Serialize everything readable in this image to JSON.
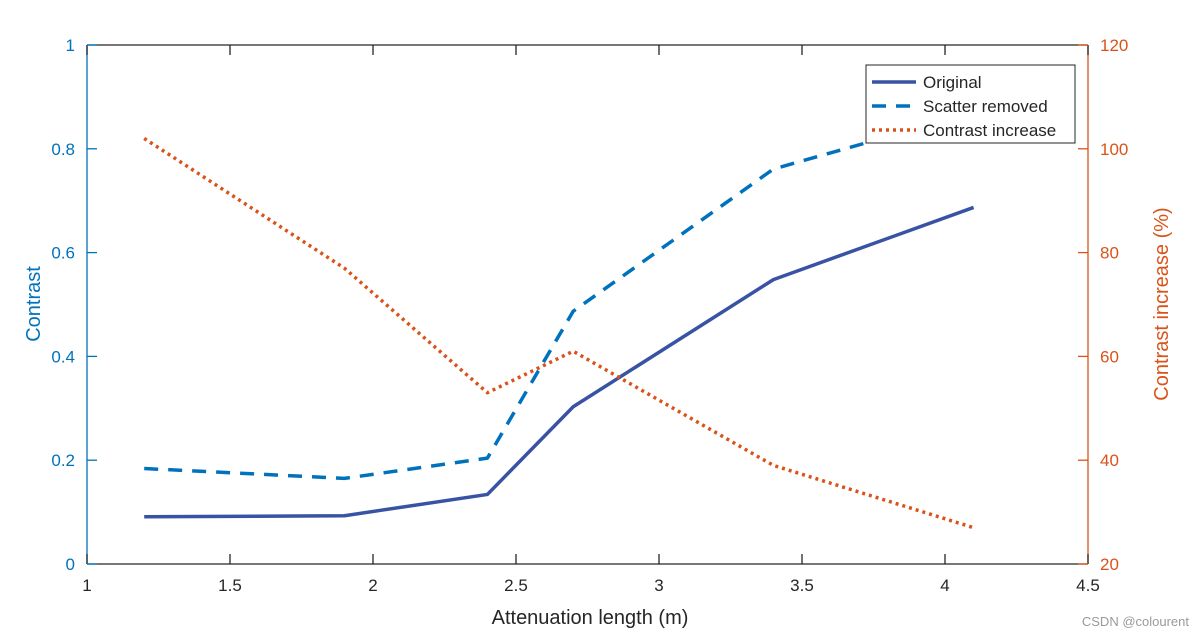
{
  "chart_data": {
    "type": "line",
    "xlabel": "Attenuation length (m)",
    "ylabel": "Contrast",
    "ylabel_right": "Contrast increase (%)",
    "xlim": [
      1,
      4.5
    ],
    "ylim": [
      0,
      1
    ],
    "ylim_right": [
      20,
      120
    ],
    "xticks": [
      "1",
      "1.5",
      "2",
      "2.5",
      "3",
      "3.5",
      "4",
      "4.5"
    ],
    "yticks": [
      "0",
      "0.2",
      "0.4",
      "0.6",
      "0.8",
      "1"
    ],
    "yticks_right": [
      "20",
      "40",
      "60",
      "80",
      "100",
      "120"
    ],
    "grid": false,
    "legend_position": "top-right",
    "x": [
      1.2,
      1.9,
      2.4,
      2.7,
      3.4,
      4.1
    ],
    "series": [
      {
        "name": "Original",
        "axis": "left",
        "style": "solid",
        "color": "#3953A4",
        "values": [
          0.091,
          0.093,
          0.134,
          0.303,
          0.548,
          0.687
        ]
      },
      {
        "name": "Scatter removed",
        "axis": "left",
        "style": "dashed",
        "color": "#0072BD",
        "values": [
          0.184,
          0.165,
          0.204,
          0.487,
          0.761,
          0.87
        ]
      },
      {
        "name": "Contrast increase",
        "axis": "right",
        "style": "dotted",
        "color": "#D95319",
        "values": [
          102,
          77,
          53,
          61,
          39,
          27
        ]
      }
    ],
    "colors": {
      "left_axis": "#0072BD",
      "right_axis": "#D95319",
      "x_axis": "#262626"
    }
  },
  "watermark": "CSDN @colourent"
}
